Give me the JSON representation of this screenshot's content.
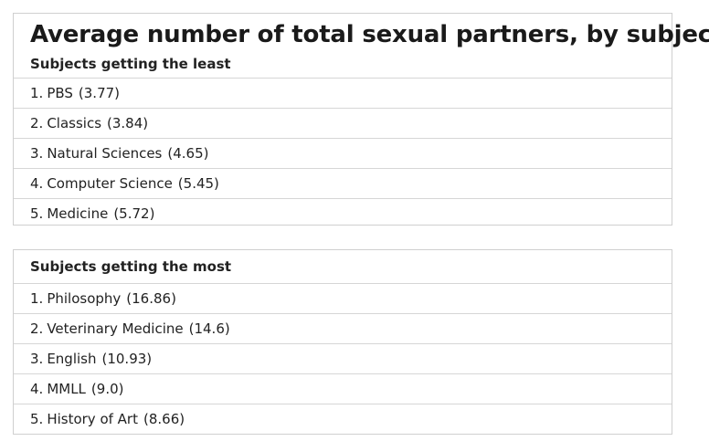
{
  "title": "Average number of total sexual partners, by subject",
  "least": {
    "heading": "Subjects getting the least",
    "rows": [
      {
        "rank": "1.",
        "subject": "PBS",
        "value": "(3.77)"
      },
      {
        "rank": "2.",
        "subject": "Classics",
        "value": "(3.84)"
      },
      {
        "rank": "3.",
        "subject": "Natural Sciences",
        "value": "(4.65)"
      },
      {
        "rank": "4.",
        "subject": "Computer Science",
        "value": "(5.45)"
      },
      {
        "rank": "5.",
        "subject": "Medicine",
        "value": "(5.72)"
      }
    ]
  },
  "most": {
    "heading": "Subjects getting the most",
    "rows": [
      {
        "rank": "1.",
        "subject": "Philosophy",
        "value": "(16.86)"
      },
      {
        "rank": "2.",
        "subject": "Veterinary Medicine",
        "value": "(14.6)"
      },
      {
        "rank": "3.",
        "subject": "English",
        "value": "(10.93)"
      },
      {
        "rank": "4.",
        "subject": "MMLL",
        "value": "(9.0)"
      },
      {
        "rank": "5.",
        "subject": "History of Art",
        "value": "(8.66)"
      }
    ]
  }
}
